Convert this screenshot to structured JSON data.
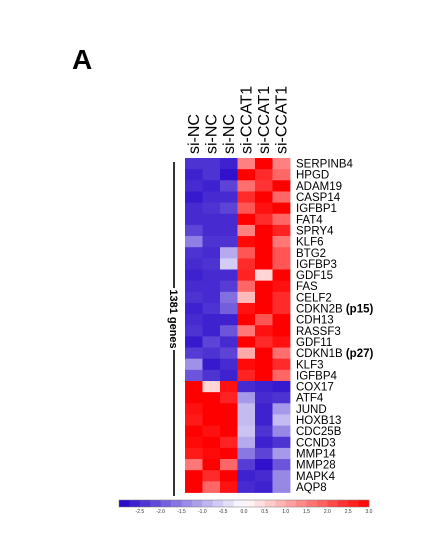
{
  "panel_letter": "A",
  "chart_data": {
    "type": "heatmap",
    "samples": [
      "si-NC",
      "si-NC",
      "si-NC",
      "si-CCAT1",
      "si-CCAT1",
      "si-CCAT1"
    ],
    "genes": [
      {
        "name": "SERPINB4",
        "note": ""
      },
      {
        "name": "HPGD",
        "note": ""
      },
      {
        "name": "ADAM19",
        "note": ""
      },
      {
        "name": "CASP14",
        "note": ""
      },
      {
        "name": "IGFBP1",
        "note": ""
      },
      {
        "name": "FAT4",
        "note": ""
      },
      {
        "name": "SPRY4",
        "note": ""
      },
      {
        "name": "KLF6",
        "note": ""
      },
      {
        "name": "BTG2",
        "note": ""
      },
      {
        "name": "IGFBP3",
        "note": ""
      },
      {
        "name": "GDF15",
        "note": ""
      },
      {
        "name": "FAS",
        "note": ""
      },
      {
        "name": "CELF2",
        "note": ""
      },
      {
        "name": "CDKN2B",
        "note": "(p15)"
      },
      {
        "name": "CDH13",
        "note": ""
      },
      {
        "name": "RASSF3",
        "note": ""
      },
      {
        "name": "GDF11",
        "note": ""
      },
      {
        "name": "CDKN1B",
        "note": "(p27)"
      },
      {
        "name": "KLF3",
        "note": ""
      },
      {
        "name": "IGFBP4",
        "note": ""
      },
      {
        "name": "COX17",
        "note": ""
      },
      {
        "name": "ATF4",
        "note": ""
      },
      {
        "name": "JUND",
        "note": ""
      },
      {
        "name": "HOXB13",
        "note": ""
      },
      {
        "name": "CDC25B",
        "note": ""
      },
      {
        "name": "CCND3",
        "note": ""
      },
      {
        "name": "MMP14",
        "note": ""
      },
      {
        "name": "MMP28",
        "note": ""
      },
      {
        "name": "MAPK4",
        "note": ""
      },
      {
        "name": "AQP8",
        "note": ""
      }
    ],
    "values": [
      [
        -2.4,
        -2.4,
        -2.6,
        1.5,
        3.0,
        1.5
      ],
      [
        -2.6,
        -2.4,
        -2.8,
        3.0,
        2.5,
        1.8
      ],
      [
        -2.5,
        -2.6,
        -2.2,
        1.7,
        2.4,
        3.0
      ],
      [
        -2.7,
        -2.5,
        -2.5,
        2.5,
        3.0,
        1.8
      ],
      [
        -2.5,
        -2.4,
        -2.2,
        2.0,
        2.8,
        3.0
      ],
      [
        -2.5,
        -2.5,
        -2.5,
        3.0,
        2.5,
        1.8
      ],
      [
        -2.2,
        -2.5,
        -2.5,
        1.5,
        3.0,
        2.6
      ],
      [
        -1.5,
        -2.4,
        -2.4,
        2.9,
        3.0,
        1.6
      ],
      [
        -2.4,
        -2.5,
        -1.0,
        2.0,
        3.0,
        2.0
      ],
      [
        -2.5,
        -2.4,
        -0.6,
        2.5,
        3.0,
        2.0
      ],
      [
        -2.6,
        -2.5,
        -2.5,
        2.6,
        0.5,
        3.0
      ],
      [
        -2.5,
        -2.5,
        -2.3,
        1.8,
        3.0,
        2.8
      ],
      [
        -2.4,
        -2.5,
        -1.7,
        0.8,
        3.0,
        2.5
      ],
      [
        -2.6,
        -2.4,
        -1.9,
        2.8,
        3.0,
        2.5
      ],
      [
        -2.5,
        -2.6,
        -2.6,
        3.0,
        2.0,
        3.0
      ],
      [
        -2.4,
        -2.6,
        -2.0,
        1.6,
        2.8,
        3.0
      ],
      [
        -2.7,
        -2.2,
        -2.5,
        3.0,
        2.5,
        2.8
      ],
      [
        -2.3,
        -2.4,
        -2.2,
        1.0,
        3.0,
        1.7
      ],
      [
        -1.3,
        -2.7,
        -2.5,
        2.9,
        3.0,
        2.5
      ],
      [
        -2.0,
        -2.4,
        -2.6,
        2.6,
        3.0,
        1.8
      ],
      [
        3.0,
        0.5,
        2.8,
        -2.5,
        -2.6,
        -2.7
      ],
      [
        3.0,
        3.0,
        2.6,
        -1.2,
        -2.5,
        -2.4
      ],
      [
        2.8,
        3.0,
        3.0,
        -0.8,
        -2.6,
        -1.2
      ],
      [
        2.7,
        3.0,
        3.0,
        -0.8,
        -2.6,
        -0.8
      ],
      [
        3.0,
        2.8,
        3.0,
        -0.7,
        -2.4,
        -1.4
      ],
      [
        2.9,
        3.0,
        2.6,
        -1.0,
        -2.6,
        -2.4
      ],
      [
        2.7,
        2.9,
        3.0,
        -1.6,
        -2.2,
        -1.2
      ],
      [
        1.6,
        3.0,
        1.8,
        -2.3,
        -2.8,
        -2.0
      ],
      [
        3.0,
        2.5,
        3.0,
        -2.6,
        -2.5,
        -1.4
      ],
      [
        3.0,
        1.8,
        2.8,
        -2.5,
        -2.6,
        -1.4
      ]
    ],
    "row_group_label": "1381 genes",
    "color_scale": {
      "min": -3.0,
      "max": 3.0,
      "low_color": "#2200c8",
      "mid_color": "#ffffff",
      "high_color": "#ff0000",
      "ticks": [
        "-2.5",
        "-2.0",
        "-1.5",
        "-1.0",
        "-0.5",
        "0.0",
        "0.5",
        "1.0",
        "1.5",
        "2.0",
        "2.5",
        "3.0"
      ]
    }
  }
}
